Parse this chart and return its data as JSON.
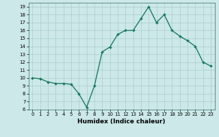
{
  "x": [
    0,
    1,
    2,
    3,
    4,
    5,
    6,
    7,
    8,
    9,
    10,
    11,
    12,
    13,
    14,
    15,
    16,
    17,
    18,
    19,
    20,
    21,
    22,
    23
  ],
  "y": [
    10.0,
    9.9,
    9.5,
    9.3,
    9.3,
    9.2,
    8.0,
    6.3,
    9.0,
    13.3,
    13.9,
    15.5,
    16.0,
    16.0,
    17.5,
    19.0,
    17.0,
    18.0,
    16.0,
    15.3,
    14.7,
    14.0,
    12.0,
    11.5
  ],
  "line_color": "#1a7a5e",
  "marker": "D",
  "marker_size": 2.0,
  "linewidth": 1.0,
  "xlabel": "Humidex (Indice chaleur)",
  "xlabel_fontsize": 6.5,
  "ylim": [
    6,
    19.5
  ],
  "xlim": [
    -0.5,
    23.5
  ],
  "yticks": [
    6,
    7,
    8,
    9,
    10,
    11,
    12,
    13,
    14,
    15,
    16,
    17,
    18,
    19
  ],
  "xticks": [
    0,
    1,
    2,
    3,
    4,
    5,
    6,
    7,
    8,
    9,
    10,
    11,
    12,
    13,
    14,
    15,
    16,
    17,
    18,
    19,
    20,
    21,
    22,
    23
  ],
  "xtick_labels": [
    "0",
    "1",
    "2",
    "3",
    "4",
    "5",
    "6",
    "7",
    "8",
    "9",
    "10",
    "11",
    "12",
    "13",
    "14",
    "15",
    "16",
    "17",
    "18",
    "19",
    "20",
    "21",
    "22",
    "23"
  ],
  "background_color": "#cce8e8",
  "grid_color": "#aacccc",
  "tick_fontsize": 5.0
}
